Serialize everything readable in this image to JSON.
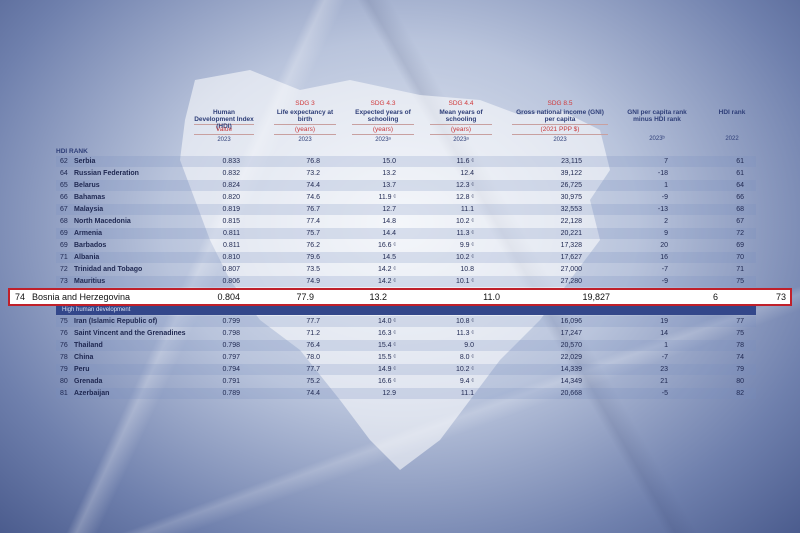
{
  "header": {
    "hdi_rank_label": "HDI RANK",
    "columns": [
      {
        "sdg": "",
        "name": "Human Development Index (HDI)",
        "unit": "Value",
        "year": "2023"
      },
      {
        "sdg": "SDG 3",
        "name": "Life expectancy at birth",
        "unit": "(years)",
        "year": "2023"
      },
      {
        "sdg": "SDG 4.3",
        "name": "Expected years of schooling",
        "unit": "(years)",
        "year": "2023ᵃ"
      },
      {
        "sdg": "SDG 4.4",
        "name": "Mean years of schooling",
        "unit": "(years)",
        "year": "2023ᵃ"
      },
      {
        "sdg": "SDG 8.5",
        "name": "Gross national income (GNI) per capita",
        "unit": "(2021 PPP $)",
        "year": "2023"
      },
      {
        "sdg": "",
        "name": "GNI per capita rank minus HDI rank",
        "unit": "",
        "year": "2023ᵇ"
      },
      {
        "sdg": "",
        "name": "HDI rank",
        "unit": "",
        "year": "2022"
      }
    ]
  },
  "rows_top": [
    {
      "rank": "62",
      "country": "Serbia",
      "hdi": "0.833",
      "life": "76.8",
      "school": "15.0",
      "mean": "11.6 ᶜ",
      "gni": "23,115",
      "gni_rank": "7",
      "hdi_rank": "61"
    },
    {
      "rank": "64",
      "country": "Russian Federation",
      "hdi": "0.832",
      "life": "73.2",
      "school": "13.2",
      "mean": "12.4",
      "gni": "39,122",
      "gni_rank": "-18",
      "hdi_rank": "61"
    },
    {
      "rank": "65",
      "country": "Belarus",
      "hdi": "0.824",
      "life": "74.4",
      "school": "13.7",
      "mean": "12.3 ᶜ",
      "gni": "26,725",
      "gni_rank": "1",
      "hdi_rank": "64"
    },
    {
      "rank": "66",
      "country": "Bahamas",
      "hdi": "0.820",
      "life": "74.6",
      "school": "11.9 ᶜ",
      "mean": "12.8 ᶜ",
      "gni": "30,975",
      "gni_rank": "-9",
      "hdi_rank": "66"
    },
    {
      "rank": "67",
      "country": "Malaysia",
      "hdi": "0.819",
      "life": "76.7",
      "school": "12.7",
      "mean": "11.1",
      "gni": "32,553",
      "gni_rank": "-13",
      "hdi_rank": "68"
    },
    {
      "rank": "68",
      "country": "North Macedonia",
      "hdi": "0.815",
      "life": "77.4",
      "school": "14.8",
      "mean": "10.2 ᶜ",
      "gni": "22,128",
      "gni_rank": "2",
      "hdi_rank": "67"
    },
    {
      "rank": "69",
      "country": "Armenia",
      "hdi": "0.811",
      "life": "75.7",
      "school": "14.4",
      "mean": "11.3 ᶜ",
      "gni": "20,221",
      "gni_rank": "9",
      "hdi_rank": "72"
    },
    {
      "rank": "69",
      "country": "Barbados",
      "hdi": "0.811",
      "life": "76.2",
      "school": "16.6 ᶜ",
      "mean": "9.9 ᶜ",
      "gni": "17,328",
      "gni_rank": "20",
      "hdi_rank": "69"
    },
    {
      "rank": "71",
      "country": "Albania",
      "hdi": "0.810",
      "life": "79.6",
      "school": "14.5",
      "mean": "10.2 ᶜ",
      "gni": "17,627",
      "gni_rank": "16",
      "hdi_rank": "70"
    },
    {
      "rank": "72",
      "country": "Trinidad and Tobago",
      "hdi": "0.807",
      "life": "73.5",
      "school": "14.2 ᶜ",
      "mean": "10.8",
      "gni": "27,000",
      "gni_rank": "-7",
      "hdi_rank": "71"
    },
    {
      "rank": "73",
      "country": "Mauritius",
      "hdi": "0.806",
      "life": "74.9",
      "school": "14.2 ᶜ",
      "mean": "10.1 ᶜ",
      "gni": "27,280",
      "gni_rank": "-9",
      "hdi_rank": "75"
    }
  ],
  "highlight": {
    "rank": "74",
    "country": "Bosnia and Herzegovina",
    "hdi": "0.804",
    "life": "77.9",
    "school": "13.2",
    "mean": "11.0",
    "gni": "19,827",
    "gni_rank": "6",
    "hdi_rank": "73"
  },
  "section_label": "High human development",
  "rows_bottom": [
    {
      "rank": "75",
      "country": "Iran (Islamic Republic of)",
      "hdi": "0.799",
      "life": "77.7",
      "school": "14.0 ᶜ",
      "mean": "10.8 ᶜ",
      "gni": "16,096",
      "gni_rank": "19",
      "hdi_rank": "77"
    },
    {
      "rank": "76",
      "country": "Saint Vincent and the Grenadines",
      "hdi": "0.798",
      "life": "71.2",
      "school": "16.3 ᶜ",
      "mean": "11.3 ᶜ",
      "gni": "17,247",
      "gni_rank": "14",
      "hdi_rank": "75"
    },
    {
      "rank": "76",
      "country": "Thailand",
      "hdi": "0.798",
      "life": "76.4",
      "school": "15.4 ᶜ",
      "mean": "9.0",
      "gni": "20,570",
      "gni_rank": "1",
      "hdi_rank": "78"
    },
    {
      "rank": "78",
      "country": "China",
      "hdi": "0.797",
      "life": "78.0",
      "school": "15.5 ᶜ",
      "mean": "8.0 ᶜ",
      "gni": "22,029",
      "gni_rank": "-7",
      "hdi_rank": "74"
    },
    {
      "rank": "79",
      "country": "Peru",
      "hdi": "0.794",
      "life": "77.7",
      "school": "14.9 ᶜ",
      "mean": "10.2 ᶜ",
      "gni": "14,339",
      "gni_rank": "23",
      "hdi_rank": "79"
    },
    {
      "rank": "80",
      "country": "Grenada",
      "hdi": "0.791",
      "life": "75.2",
      "school": "16.6 ᶜ",
      "mean": "9.4 ᶜ",
      "gni": "14,349",
      "gni_rank": "21",
      "hdi_rank": "80"
    },
    {
      "rank": "81",
      "country": "Azerbaijan",
      "hdi": "0.789",
      "life": "74.4",
      "school": "12.9",
      "mean": "11.1",
      "gni": "20,668",
      "gni_rank": "-5",
      "hdi_rank": "82"
    }
  ],
  "colors": {
    "accent_red": "#c0202a",
    "header_blue": "#2e3e78",
    "section_band": "#33478a"
  }
}
